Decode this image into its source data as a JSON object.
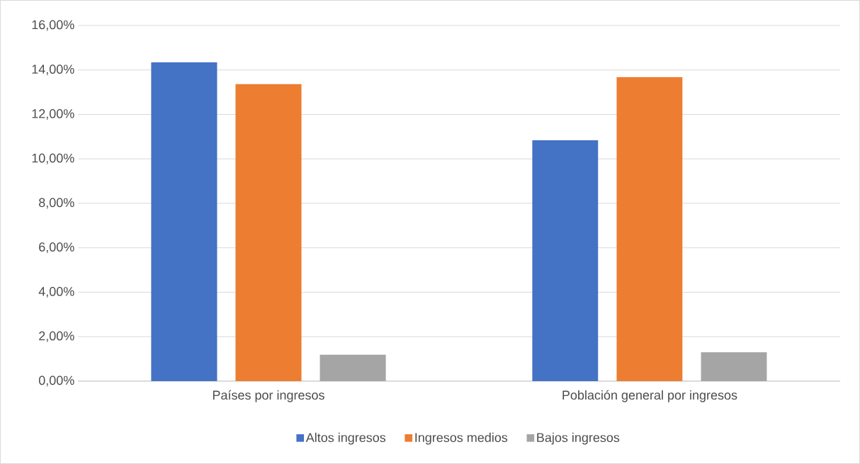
{
  "chart_data": {
    "type": "bar",
    "categories": [
      "Países por ingresos",
      "Población general por ingresos"
    ],
    "series": [
      {
        "name": "Altos ingresos",
        "color": "#4472c4",
        "values": [
          14.34,
          10.84
        ]
      },
      {
        "name": "Ingresos medios",
        "color": "#ed7d31",
        "values": [
          13.36,
          13.68
        ]
      },
      {
        "name": "Bajos ingresos",
        "color": "#a5a5a5",
        "values": [
          1.19,
          1.3
        ]
      }
    ],
    "ylim": [
      0,
      16
    ],
    "yticks": [
      {
        "value": 0,
        "label": "0,00%"
      },
      {
        "value": 2,
        "label": "2,00%"
      },
      {
        "value": 4,
        "label": "4,00%"
      },
      {
        "value": 6,
        "label": "6,00%"
      },
      {
        "value": 8,
        "label": "8,00%"
      },
      {
        "value": 10,
        "label": "10,00%"
      },
      {
        "value": 12,
        "label": "12,00%"
      },
      {
        "value": 14,
        "label": "14,00%"
      },
      {
        "value": 16,
        "label": "16,00%"
      }
    ],
    "grid": "y",
    "legend": "bottom"
  }
}
